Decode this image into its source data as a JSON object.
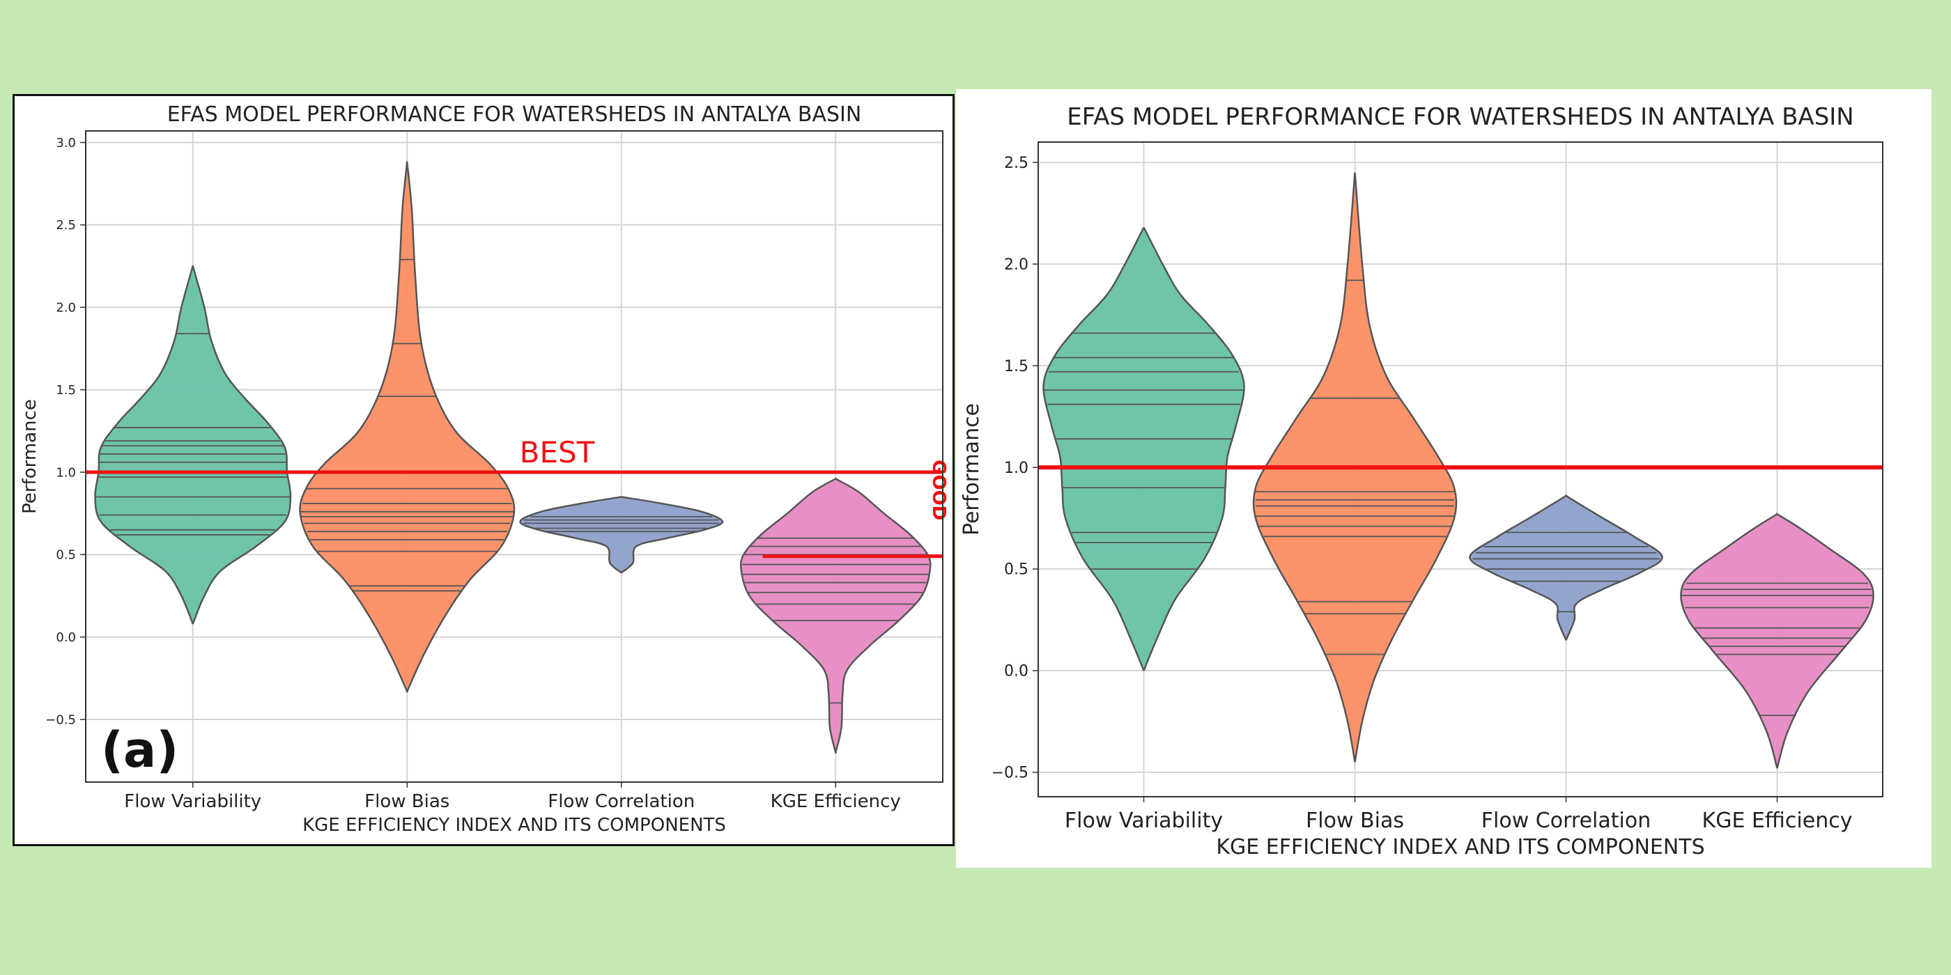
{
  "page": {
    "background": "#c6e9b4"
  },
  "palette": {
    "flow_variability": "#66c2a5",
    "flow_bias": "#fc8d62",
    "flow_correlation": "#8da0cb",
    "kge_efficiency": "#e78ac3",
    "reference_line": "#ee1111"
  },
  "chart_data": [
    {
      "id": "a",
      "type": "violin",
      "panel_label": "(a)",
      "title": "EFAS MODEL PERFORMANCE FOR WATERSHEDS IN ANTALYA BASIN",
      "xlabel": "KGE EFFICIENCY INDEX AND ITS COMPONENTS",
      "ylabel": "Performance",
      "ylim": [
        -0.88,
        3.07
      ],
      "yticks": [
        -0.5,
        0.0,
        0.5,
        1.0,
        1.5,
        2.0,
        2.5,
        3.0
      ],
      "ytick_labels": [
        "−0.5",
        "0.0",
        "0.5",
        "1.0",
        "1.5",
        "2.0",
        "2.5",
        "3.0"
      ],
      "grid": true,
      "categories": [
        "Flow Variability",
        "Flow Bias",
        "Flow Correlation",
        "KGE Efficiency"
      ],
      "reference_lines": [
        {
          "y": 1.0,
          "label": "BEST",
          "x_start": 0,
          "x_end": 1,
          "label_at": 0.55
        },
        {
          "y": 0.49,
          "label": "GOOD",
          "x_start": 0.79,
          "x_end": 1,
          "label_rotated": true
        }
      ],
      "violins": [
        {
          "category": "Flow Variability",
          "series_key": "flow_variability",
          "profile": [
            [
              0.08,
              0
            ],
            [
              0.25,
              0.1
            ],
            [
              0.4,
              0.24
            ],
            [
              0.55,
              0.55
            ],
            [
              0.7,
              0.8
            ],
            [
              0.85,
              0.85
            ],
            [
              1.0,
              0.82
            ],
            [
              1.15,
              0.8
            ],
            [
              1.3,
              0.65
            ],
            [
              1.45,
              0.45
            ],
            [
              1.6,
              0.28
            ],
            [
              1.8,
              0.16
            ],
            [
              2.0,
              0.1
            ],
            [
              2.25,
              0
            ]
          ],
          "observations": [
            0.62,
            0.65,
            0.74,
            0.85,
            0.97,
            1.0,
            1.06,
            1.11,
            1.16,
            1.19,
            1.27,
            1.84
          ]
        },
        {
          "category": "Flow Bias",
          "series_key": "flow_bias",
          "profile": [
            [
              -0.33,
              0
            ],
            [
              -0.1,
              0.15
            ],
            [
              0.15,
              0.35
            ],
            [
              0.35,
              0.55
            ],
            [
              0.55,
              0.82
            ],
            [
              0.75,
              0.93
            ],
            [
              0.9,
              0.88
            ],
            [
              1.05,
              0.72
            ],
            [
              1.25,
              0.42
            ],
            [
              1.5,
              0.23
            ],
            [
              1.8,
              0.12
            ],
            [
              2.2,
              0.07
            ],
            [
              2.6,
              0.04
            ],
            [
              2.88,
              0
            ]
          ],
          "observations": [
            0.28,
            0.31,
            0.52,
            0.59,
            0.64,
            0.69,
            0.73,
            0.76,
            0.81,
            0.9,
            1.46,
            1.78,
            2.29
          ]
        },
        {
          "category": "Flow Correlation",
          "series_key": "flow_correlation",
          "profile": [
            [
              0.39,
              0
            ],
            [
              0.45,
              0.1
            ],
            [
              0.55,
              0.13
            ],
            [
              0.6,
              0.4
            ],
            [
              0.65,
              0.72
            ],
            [
              0.7,
              0.88
            ],
            [
              0.76,
              0.7
            ],
            [
              0.81,
              0.35
            ],
            [
              0.85,
              0
            ]
          ],
          "observations": [
            0.64,
            0.66,
            0.69,
            0.71,
            0.73
          ]
        },
        {
          "category": "KGE Efficiency",
          "series_key": "kge_efficiency",
          "profile": [
            [
              -0.7,
              0
            ],
            [
              -0.55,
              0.05
            ],
            [
              -0.35,
              0.06
            ],
            [
              -0.2,
              0.1
            ],
            [
              -0.05,
              0.3
            ],
            [
              0.1,
              0.55
            ],
            [
              0.25,
              0.75
            ],
            [
              0.4,
              0.82
            ],
            [
              0.5,
              0.8
            ],
            [
              0.62,
              0.65
            ],
            [
              0.75,
              0.42
            ],
            [
              0.88,
              0.2
            ],
            [
              0.96,
              0
            ]
          ],
          "observations": [
            -0.4,
            0.1,
            0.2,
            0.27,
            0.33,
            0.38,
            0.44,
            0.5,
            0.55,
            0.6
          ]
        }
      ]
    },
    {
      "id": "b",
      "type": "violin",
      "title": "EFAS MODEL PERFORMANCE FOR WATERSHEDS IN ANTALYA BASIN",
      "xlabel": "KGE EFFICIENCY INDEX AND ITS COMPONENTS",
      "ylabel": "Performance",
      "ylim": [
        -0.62,
        2.6
      ],
      "yticks": [
        -0.5,
        0.0,
        0.5,
        1.0,
        1.5,
        2.0,
        2.5
      ],
      "ytick_labels": [
        "−0.5",
        "0.0",
        "0.5",
        "1.0",
        "1.5",
        "2.0",
        "2.5"
      ],
      "grid": true,
      "categories": [
        "Flow Variability",
        "Flow Bias",
        "Flow Correlation",
        "KGE Efficiency"
      ],
      "reference_lines": [
        {
          "y": 1.0,
          "x_start": 0,
          "x_end": 1
        }
      ],
      "violins": [
        {
          "category": "Flow Variability",
          "series_key": "flow_variability",
          "profile": [
            [
              0.0,
              0
            ],
            [
              0.15,
              0.12
            ],
            [
              0.35,
              0.3
            ],
            [
              0.55,
              0.58
            ],
            [
              0.75,
              0.75
            ],
            [
              0.9,
              0.78
            ],
            [
              1.05,
              0.8
            ],
            [
              1.2,
              0.88
            ],
            [
              1.4,
              0.96
            ],
            [
              1.55,
              0.85
            ],
            [
              1.7,
              0.62
            ],
            [
              1.85,
              0.35
            ],
            [
              2.0,
              0.18
            ],
            [
              2.18,
              0
            ]
          ],
          "observations": [
            0.5,
            0.63,
            0.68,
            0.9,
            1.14,
            1.31,
            1.38,
            1.47,
            1.54,
            1.66
          ]
        },
        {
          "category": "Flow Bias",
          "series_key": "flow_bias",
          "profile": [
            [
              -0.45,
              0
            ],
            [
              -0.25,
              0.07
            ],
            [
              -0.05,
              0.18
            ],
            [
              0.15,
              0.35
            ],
            [
              0.35,
              0.56
            ],
            [
              0.55,
              0.78
            ],
            [
              0.75,
              0.95
            ],
            [
              0.9,
              0.95
            ],
            [
              1.05,
              0.8
            ],
            [
              1.25,
              0.55
            ],
            [
              1.45,
              0.3
            ],
            [
              1.7,
              0.14
            ],
            [
              2.0,
              0.07
            ],
            [
              2.45,
              0
            ]
          ],
          "observations": [
            0.08,
            0.28,
            0.34,
            0.66,
            0.71,
            0.76,
            0.81,
            0.84,
            0.88,
            1.34,
            1.92
          ]
        },
        {
          "category": "Flow Correlation",
          "series_key": "flow_correlation",
          "profile": [
            [
              0.15,
              0
            ],
            [
              0.25,
              0.08
            ],
            [
              0.33,
              0.1
            ],
            [
              0.4,
              0.35
            ],
            [
              0.48,
              0.7
            ],
            [
              0.56,
              0.92
            ],
            [
              0.66,
              0.65
            ],
            [
              0.76,
              0.32
            ],
            [
              0.86,
              0
            ]
          ],
          "observations": [
            0.29,
            0.44,
            0.5,
            0.55,
            0.58,
            0.61,
            0.68
          ]
        },
        {
          "category": "KGE Efficiency",
          "series_key": "kge_efficiency",
          "profile": [
            [
              -0.48,
              0
            ],
            [
              -0.3,
              0.1
            ],
            [
              -0.1,
              0.3
            ],
            [
              0.1,
              0.62
            ],
            [
              0.25,
              0.85
            ],
            [
              0.38,
              0.92
            ],
            [
              0.48,
              0.82
            ],
            [
              0.6,
              0.5
            ],
            [
              0.7,
              0.22
            ],
            [
              0.77,
              0
            ]
          ],
          "observations": [
            -0.22,
            0.08,
            0.12,
            0.16,
            0.21,
            0.31,
            0.37,
            0.4,
            0.43
          ]
        }
      ]
    }
  ]
}
